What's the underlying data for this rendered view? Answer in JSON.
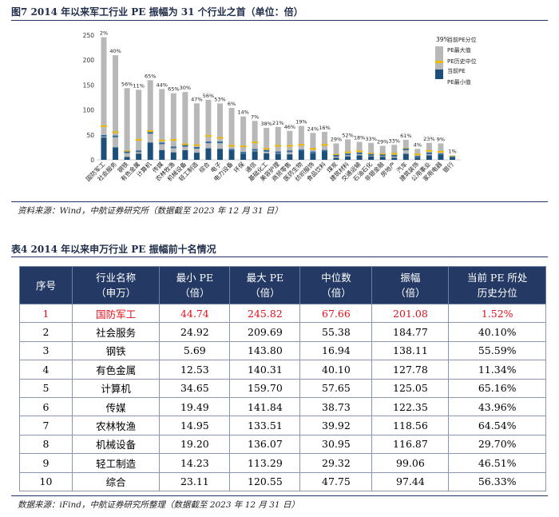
{
  "figure": {
    "title": "图7 2014 年以来军工行业 PE 振幅为 31 个行业之首（单位：倍）",
    "source": "资料来源：Wind，中航证券研究所（数据截至 2023 年 12 月 31 日）"
  },
  "chart_data": {
    "type": "bar",
    "title": "2014 年以来军工行业 PE 振幅为 31 个行业之首（单位：倍）",
    "categories": [
      "国防军工",
      "社会服务",
      "钢铁",
      "有色金属",
      "计算机",
      "传媒",
      "农林牧渔",
      "机械设备",
      "轻工制造",
      "综合",
      "电子",
      "电力设备",
      "环保",
      "通信",
      "基础化工",
      "美容护理",
      "商贸零售",
      "医药生物",
      "纺织服饰",
      "食品饮料",
      "煤炭",
      "建筑材料",
      "交通运输",
      "石油石化",
      "非银金融",
      "房地产",
      "汽车",
      "建筑装饰",
      "公用事业",
      "家用电器",
      "银行"
    ],
    "percentile_labels": [
      "2%",
      "40%",
      "56%",
      "11%",
      "65%",
      "44%",
      "65%",
      "30%",
      "47%",
      "56%",
      "53%",
      "6%",
      "14%",
      "7%",
      "38%",
      "21%",
      "46%",
      "19%",
      "24%",
      "16%",
      "29%",
      "52%",
      "18%",
      "33%",
      "29%",
      "33%",
      "61%",
      "4%",
      "23%",
      "9%",
      "1%"
    ],
    "series": [
      {
        "name": "PE最小值",
        "values": [
          44.74,
          24.92,
          5.69,
          12.53,
          34.65,
          19.49,
          14.95,
          19.2,
          14.23,
          23.11,
          22,
          19,
          12,
          17,
          13,
          12,
          11,
          18,
          13,
          17,
          4,
          7,
          9,
          7,
          6,
          4,
          12,
          4,
          9,
          10,
          4
        ]
      },
      {
        "name": "PE最大值",
        "values": [
          245.82,
          209.69,
          143.8,
          140.31,
          159.7,
          141.84,
          133.51,
          136.07,
          113.29,
          120.55,
          113,
          104,
          87,
          78,
          64,
          66,
          58,
          68,
          54,
          56,
          33,
          41,
          36,
          34,
          28,
          30,
          40,
          22,
          34,
          33,
          9
        ]
      },
      {
        "name": "PE历史中位",
        "values": [
          67.66,
          55.38,
          16.94,
          40.1,
          57.65,
          38.73,
          39.92,
          30.95,
          29.32,
          47.75,
          44,
          28,
          27,
          35,
          22,
          28,
          28,
          30,
          22,
          30,
          10,
          15,
          17,
          12,
          11,
          12,
          22,
          11,
          18,
          16,
          6
        ]
      },
      {
        "name": "当前PE",
        "values": [
          48,
          47,
          15,
          17,
          54,
          33,
          25,
          28,
          24,
          35,
          35,
          20,
          14,
          20,
          18,
          15,
          17,
          19,
          15,
          18,
          8,
          11,
          13,
          10,
          9,
          8,
          21,
          6,
          13,
          11,
          5
        ]
      }
    ],
    "ylim": [
      0,
      250
    ],
    "yticks": [
      0,
      50,
      100,
      150,
      200,
      250
    ],
    "legend": {
      "percentile_example": "39%",
      "percentile_label": "当前PE分位",
      "max_label": "PE最大值",
      "median_label": "PE历史中位",
      "current_label": "当前PE",
      "min_label": "PE最小值"
    },
    "colors": {
      "range": "#b8b8b8",
      "median": "#f2b800",
      "current": "#1c4f7a"
    }
  },
  "table": {
    "title": "表4 2014 年以来申万行业 PE 振幅前十名情况",
    "headers": [
      {
        "line1": "序号",
        "line2": ""
      },
      {
        "line1": "行业名称",
        "line2": "（申万）"
      },
      {
        "line1": "最小 PE",
        "line2": "（倍）"
      },
      {
        "line1": "最大 PE",
        "line2": "（倍）"
      },
      {
        "line1": "中位数",
        "line2": "（倍）"
      },
      {
        "line1": "振幅",
        "line2": "（倍）"
      },
      {
        "line1": "当前 PE 所处",
        "line2": "历史分位"
      }
    ],
    "rows": [
      [
        "1",
        "国防军工",
        "44.74",
        "245.82",
        "67.66",
        "201.08",
        "1.52%"
      ],
      [
        "2",
        "社会服务",
        "24.92",
        "209.69",
        "55.38",
        "184.77",
        "40.10%"
      ],
      [
        "3",
        "钢铁",
        "5.69",
        "143.80",
        "16.94",
        "138.11",
        "55.59%"
      ],
      [
        "4",
        "有色金属",
        "12.53",
        "140.31",
        "40.10",
        "127.78",
        "11.34%"
      ],
      [
        "5",
        "计算机",
        "34.65",
        "159.70",
        "57.65",
        "125.05",
        "65.16%"
      ],
      [
        "6",
        "传媒",
        "19.49",
        "141.84",
        "38.73",
        "122.35",
        "43.96%"
      ],
      [
        "7",
        "农林牧渔",
        "14.95",
        "133.51",
        "39.92",
        "118.56",
        "64.54%"
      ],
      [
        "8",
        "机械设备",
        "19.20",
        "136.07",
        "30.95",
        "116.87",
        "29.70%"
      ],
      [
        "9",
        "轻工制造",
        "14.23",
        "113.29",
        "29.32",
        "99.06",
        "46.51%"
      ],
      [
        "10",
        "综合",
        "23.11",
        "120.55",
        "47.75",
        "97.44",
        "56.33%"
      ]
    ],
    "source": "数据来源：iFind，中航证券研究所整理（数据截至 2023 年 12 月 31 日）"
  }
}
